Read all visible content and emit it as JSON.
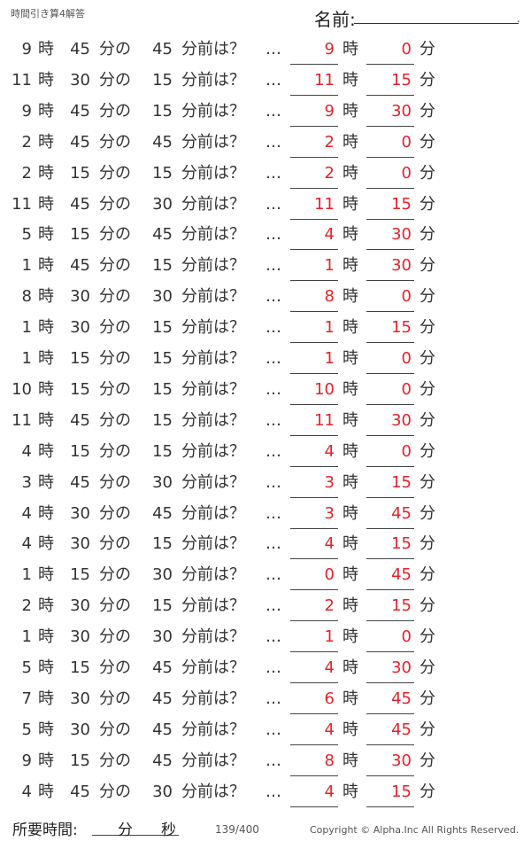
{
  "header": {
    "title": "時間引き算4解答",
    "name_label": "名前:",
    "name_end": "."
  },
  "labels": {
    "hour": "時",
    "minute_of": "分の",
    "minutes_before": "分前は？",
    "ellipsis": "…",
    "answer_hour": "時",
    "answer_minute": "分"
  },
  "colors": {
    "answer": "#e8212a",
    "text": "#333333"
  },
  "problems": [
    {
      "h": "9",
      "m": "45",
      "sub": "45",
      "ah": "9",
      "am": "0"
    },
    {
      "h": "11",
      "m": "30",
      "sub": "15",
      "ah": "11",
      "am": "15"
    },
    {
      "h": "9",
      "m": "45",
      "sub": "15",
      "ah": "9",
      "am": "30"
    },
    {
      "h": "2",
      "m": "45",
      "sub": "45",
      "ah": "2",
      "am": "0"
    },
    {
      "h": "2",
      "m": "15",
      "sub": "15",
      "ah": "2",
      "am": "0"
    },
    {
      "h": "11",
      "m": "45",
      "sub": "30",
      "ah": "11",
      "am": "15"
    },
    {
      "h": "5",
      "m": "15",
      "sub": "45",
      "ah": "4",
      "am": "30"
    },
    {
      "h": "1",
      "m": "45",
      "sub": "15",
      "ah": "1",
      "am": "30"
    },
    {
      "h": "8",
      "m": "30",
      "sub": "30",
      "ah": "8",
      "am": "0"
    },
    {
      "h": "1",
      "m": "30",
      "sub": "15",
      "ah": "1",
      "am": "15"
    },
    {
      "h": "1",
      "m": "15",
      "sub": "15",
      "ah": "1",
      "am": "0"
    },
    {
      "h": "10",
      "m": "15",
      "sub": "15",
      "ah": "10",
      "am": "0"
    },
    {
      "h": "11",
      "m": "45",
      "sub": "15",
      "ah": "11",
      "am": "30"
    },
    {
      "h": "4",
      "m": "15",
      "sub": "15",
      "ah": "4",
      "am": "0"
    },
    {
      "h": "3",
      "m": "45",
      "sub": "30",
      "ah": "3",
      "am": "15"
    },
    {
      "h": "4",
      "m": "30",
      "sub": "45",
      "ah": "3",
      "am": "45"
    },
    {
      "h": "4",
      "m": "30",
      "sub": "15",
      "ah": "4",
      "am": "15"
    },
    {
      "h": "1",
      "m": "15",
      "sub": "30",
      "ah": "0",
      "am": "45"
    },
    {
      "h": "2",
      "m": "30",
      "sub": "15",
      "ah": "2",
      "am": "15"
    },
    {
      "h": "1",
      "m": "30",
      "sub": "30",
      "ah": "1",
      "am": "0"
    },
    {
      "h": "5",
      "m": "15",
      "sub": "45",
      "ah": "4",
      "am": "30"
    },
    {
      "h": "7",
      "m": "30",
      "sub": "45",
      "ah": "6",
      "am": "45"
    },
    {
      "h": "5",
      "m": "30",
      "sub": "45",
      "ah": "4",
      "am": "45"
    },
    {
      "h": "9",
      "m": "15",
      "sub": "45",
      "ah": "8",
      "am": "30"
    },
    {
      "h": "4",
      "m": "45",
      "sub": "30",
      "ah": "4",
      "am": "15"
    }
  ],
  "footer": {
    "time_label": "所要時間:",
    "minute": "分",
    "second": "秒",
    "page": "139/400",
    "copyright": "Copyright ©  Alpha.Inc All Rights Reserved."
  }
}
